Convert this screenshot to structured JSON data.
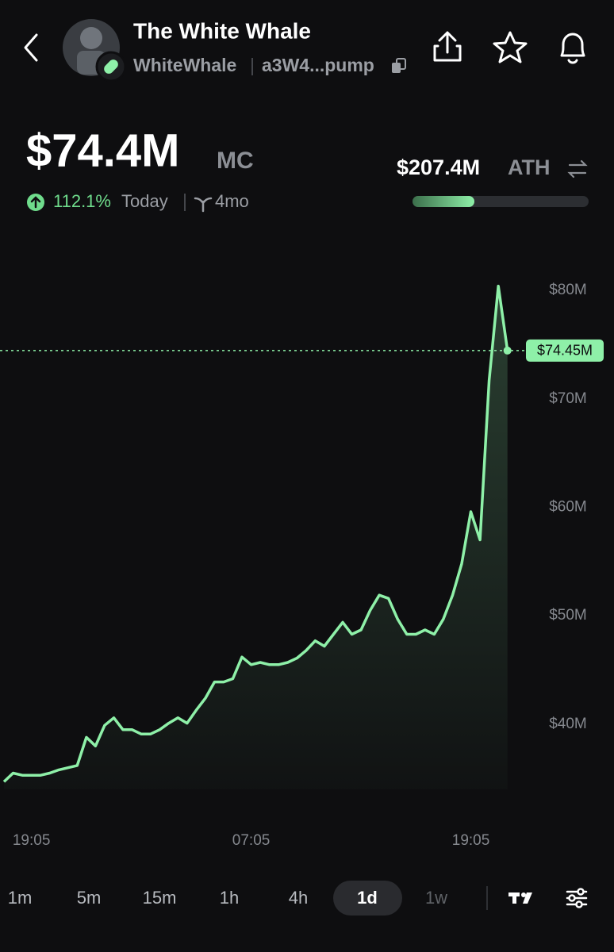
{
  "header": {
    "title": "The White Whale",
    "handle": "WhiteWhale",
    "address": "a3W4...pump"
  },
  "stats": {
    "market_cap": "$74.4M",
    "market_cap_label": "MC",
    "change": "112.1%",
    "change_period": "Today",
    "age": "4mo",
    "ath": "$207.4M",
    "ath_label": "ATH"
  },
  "chart_data": {
    "type": "line",
    "categories": [
      null,
      null,
      null,
      "19:05",
      null,
      null,
      null,
      null,
      null,
      null,
      null,
      null,
      null,
      null,
      null,
      null,
      null,
      null,
      null,
      null,
      null,
      null,
      null,
      null,
      null,
      null,
      null,
      "07:05",
      null,
      null,
      null,
      null,
      null,
      null,
      null,
      null,
      null,
      null,
      null,
      null,
      null,
      null,
      null,
      null,
      null,
      null,
      null,
      null,
      null,
      null,
      null,
      "19:05",
      null,
      null,
      null,
      null
    ],
    "series": [
      {
        "name": "Market cap",
        "color": "#8ef0a8",
        "values": [
          34.7,
          35.5,
          35.3,
          35.3,
          35.3,
          35.5,
          35.8,
          36.0,
          36.2,
          38.8,
          38.0,
          39.9,
          40.6,
          39.5,
          39.5,
          39.1,
          39.1,
          39.5,
          40.1,
          40.6,
          40.1,
          41.3,
          42.4,
          43.9,
          43.9,
          44.2,
          46.2,
          45.5,
          45.7,
          45.5,
          45.5,
          45.7,
          46.1,
          46.8,
          47.7,
          47.2,
          48.3,
          49.4,
          48.3,
          48.7,
          50.5,
          51.9,
          51.6,
          49.7,
          48.3,
          48.3,
          48.7,
          48.3,
          49.7,
          51.9,
          54.8,
          59.6,
          57.0,
          71.7,
          80.4,
          74.45
        ]
      }
    ],
    "last_price": {
      "value": 74.45,
      "label": "$74.45M"
    },
    "ylim": [
      34,
      83
    ],
    "yticks": [
      {
        "value": 40,
        "label": "$40M"
      },
      {
        "value": 50,
        "label": "$50M"
      },
      {
        "value": 60,
        "label": "$60M"
      },
      {
        "value": 70,
        "label": "$70M"
      },
      {
        "value": 80,
        "label": "$80M"
      }
    ],
    "grid": false
  },
  "timeframes": {
    "options": [
      "1m",
      "5m",
      "15m",
      "1h",
      "4h",
      "1d",
      "1w"
    ],
    "selected": "1d"
  }
}
